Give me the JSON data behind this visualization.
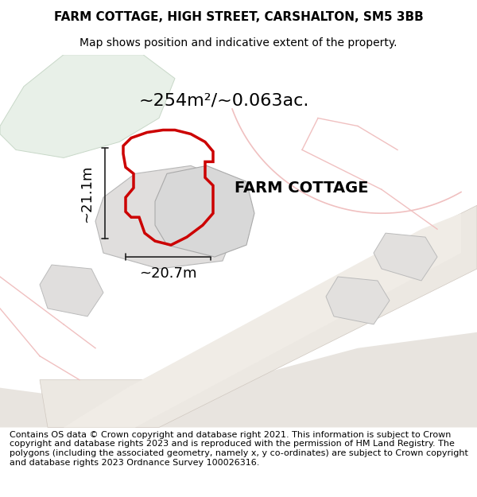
{
  "title_line1": "FARM COTTAGE, HIGH STREET, CARSHALTON, SM5 3BB",
  "title_line2": "Map shows position and indicative extent of the property.",
  "area_text": "~254m²/~0.063ac.",
  "width_label": "~20.7m",
  "height_label": "~21.1m",
  "property_label": "FARM COTTAGE",
  "footer_text": "Contains OS data © Crown copyright and database right 2021. This information is subject to Crown copyright and database rights 2023 and is reproduced with the permission of HM Land Registry. The polygons (including the associated geometry, namely x, y co-ordinates) are subject to Crown copyright and database rights 2023 Ordnance Survey 100026316.",
  "bg_color": "#f5f5f5",
  "map_bg": "#f0efee",
  "green_area_color": "#e8f0e8",
  "road_color": "#e8e0d8",
  "building_fill": "#dcdcdc",
  "property_outline_color": "#cc0000",
  "dim_line_color": "#222222",
  "pink_road_color": "#f0c0c0",
  "title_fontsize": 11,
  "subtitle_fontsize": 10,
  "area_fontsize": 16,
  "label_fontsize": 13,
  "footer_fontsize": 8
}
